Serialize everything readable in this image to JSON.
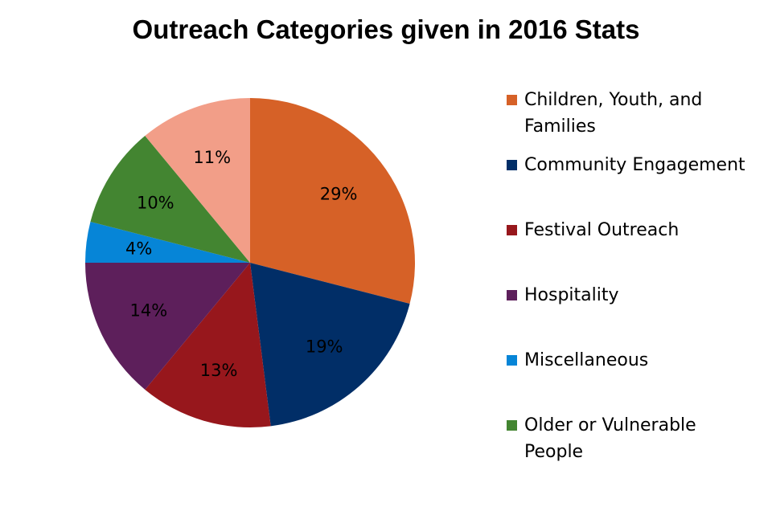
{
  "chart_data": {
    "type": "pie",
    "title": "Outreach Categories given in 2016 Stats",
    "slices": [
      {
        "label": "Children, Youth, and Families",
        "value": 29,
        "display": "29%",
        "color": "#d66127"
      },
      {
        "label": "Community Engagement",
        "value": 19,
        "display": "19%",
        "color": "#012e67"
      },
      {
        "label": "Festival Outreach",
        "value": 13,
        "display": "13%",
        "color": "#97171c"
      },
      {
        "label": "Hospitality",
        "value": 14,
        "display": "14%",
        "color": "#5d1f5b"
      },
      {
        "label": "Miscellaneous",
        "value": 4,
        "display": "4%",
        "color": "#0685d7"
      },
      {
        "label": "Older or Vulnerable People",
        "value": 10,
        "display": "10%",
        "color": "#438531"
      },
      {
        "label": "",
        "value": 11,
        "display": "11%",
        "color": "#f29e88"
      }
    ],
    "legend_position": "right"
  }
}
